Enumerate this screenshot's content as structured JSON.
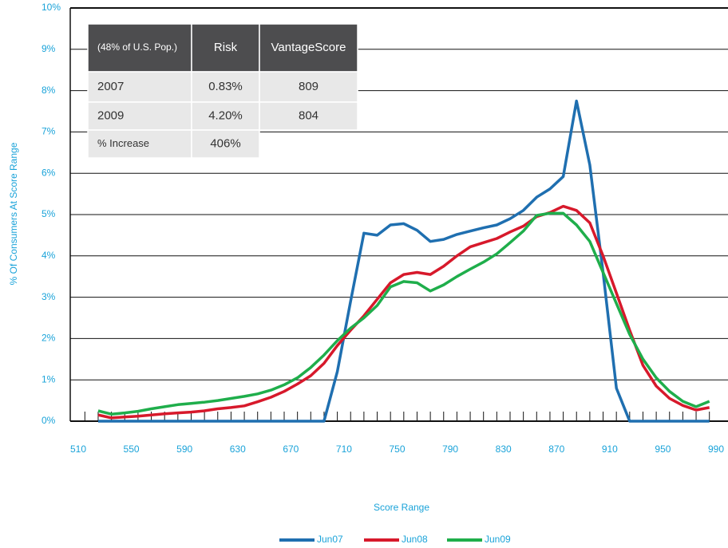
{
  "chart_data": {
    "type": "line",
    "y_label": "% Of Consumers At Score Range",
    "x_label": "Score Range",
    "xlim": [
      504,
      999
    ],
    "ylim": [
      0,
      10
    ],
    "xticks": [
      510,
      550,
      590,
      630,
      670,
      710,
      750,
      790,
      830,
      870,
      910,
      950,
      990
    ],
    "xminorticks": [
      515,
      525,
      535,
      545,
      555,
      565,
      575,
      585,
      595,
      605,
      615,
      625,
      635,
      645,
      655,
      665,
      675,
      685,
      695,
      705,
      715,
      725,
      735,
      745,
      755,
      765,
      775,
      785,
      795,
      805,
      815,
      825,
      835,
      845,
      855,
      865,
      875,
      885,
      895,
      905,
      915,
      925,
      935,
      945,
      955,
      965,
      975,
      985
    ],
    "yticks": [
      {
        "value": 0,
        "label": "0%"
      },
      {
        "value": 1,
        "label": "1%"
      },
      {
        "value": 2,
        "label": "2%"
      },
      {
        "value": 3,
        "label": "3%"
      },
      {
        "value": 4,
        "label": "4%"
      },
      {
        "value": 5,
        "label": "5%"
      },
      {
        "value": 6,
        "label": "6%"
      },
      {
        "value": 7,
        "label": "7%"
      },
      {
        "value": 8,
        "label": "8%"
      },
      {
        "value": 9,
        "label": "9%"
      },
      {
        "value": 10,
        "label": "10%"
      }
    ],
    "grid": true,
    "legend": "bottom",
    "x": [
      525,
      535,
      545,
      555,
      565,
      575,
      585,
      595,
      605,
      615,
      625,
      635,
      645,
      655,
      665,
      675,
      685,
      695,
      705,
      715,
      725,
      735,
      745,
      755,
      765,
      775,
      785,
      795,
      805,
      815,
      825,
      835,
      845,
      855,
      865,
      875,
      885,
      895,
      905,
      915,
      925,
      935,
      945,
      955,
      965,
      975,
      985
    ],
    "series": [
      {
        "name": "Jun07",
        "color": "#1f6fb0",
        "values": [
          0,
          0,
          0,
          0,
          0,
          0,
          0,
          0,
          0,
          0,
          0,
          0,
          0,
          0,
          0,
          0,
          0,
          0,
          1.2,
          2.9,
          4.55,
          4.5,
          4.75,
          4.78,
          4.62,
          4.35,
          4.4,
          4.52,
          4.6,
          4.68,
          4.75,
          4.9,
          5.1,
          5.42,
          5.62,
          5.92,
          7.75,
          6.2,
          3.6,
          0.8,
          0,
          0,
          0,
          0,
          0,
          0,
          0
        ]
      },
      {
        "name": "Jun08",
        "color": "#d7192b",
        "values": [
          0.15,
          0.08,
          0.1,
          0.12,
          0.15,
          0.18,
          0.2,
          0.22,
          0.25,
          0.3,
          0.33,
          0.37,
          0.47,
          0.58,
          0.72,
          0.9,
          1.1,
          1.4,
          1.83,
          2.2,
          2.55,
          2.95,
          3.35,
          3.55,
          3.6,
          3.55,
          3.75,
          4.0,
          4.22,
          4.32,
          4.42,
          4.58,
          4.72,
          4.95,
          5.05,
          5.2,
          5.1,
          4.8,
          4.0,
          3.1,
          2.2,
          1.35,
          0.85,
          0.55,
          0.38,
          0.27,
          0.33
        ]
      },
      {
        "name": "Jun09",
        "color": "#1fae4b",
        "values": [
          0.25,
          0.17,
          0.2,
          0.24,
          0.3,
          0.35,
          0.4,
          0.43,
          0.46,
          0.5,
          0.55,
          0.6,
          0.66,
          0.75,
          0.88,
          1.05,
          1.3,
          1.6,
          1.95,
          2.25,
          2.5,
          2.8,
          3.25,
          3.38,
          3.35,
          3.15,
          3.3,
          3.5,
          3.68,
          3.85,
          4.05,
          4.32,
          4.6,
          4.98,
          5.03,
          5.03,
          4.75,
          4.35,
          3.6,
          2.85,
          2.1,
          1.5,
          1.05,
          0.72,
          0.48,
          0.35,
          0.48
        ]
      }
    ]
  },
  "table": {
    "header": [
      "(48% of U.S. Pop.)",
      "Risk",
      "VantageScore"
    ],
    "rows": [
      [
        "2007",
        "0.83%",
        "809"
      ],
      [
        "2009",
        "4.20%",
        "804"
      ],
      [
        "% Increase",
        "406%"
      ]
    ]
  }
}
